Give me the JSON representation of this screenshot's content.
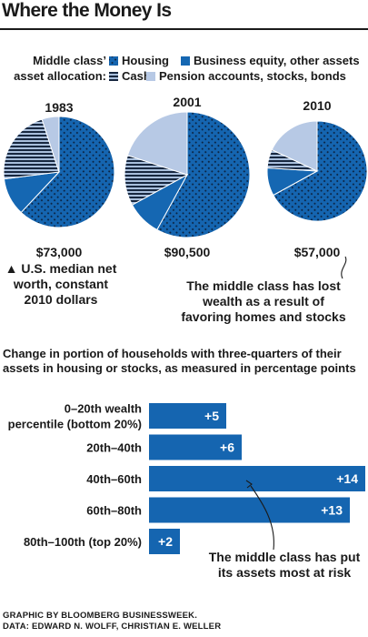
{
  "title": "Where the Money Is",
  "legend": {
    "heading_line1": "Middle class’",
    "heading_line2": "asset allocation:",
    "items": [
      {
        "label": "Housing",
        "icon": "dotted-swatch-icon"
      },
      {
        "label": "Business equity, other assets",
        "icon": "solid-blue-swatch-icon"
      },
      {
        "label": "Cash",
        "icon": "striped-swatch-icon"
      },
      {
        "label": "Pension accounts, stocks, bonds",
        "icon": "light-blue-swatch-icon"
      }
    ]
  },
  "colors": {
    "housing": "#1565b0",
    "housing_dots": "#0b2240",
    "business": "#1567b2",
    "cash_bg": "#a9bfdc",
    "cash_stripe": "#17273f",
    "pension": "#b7c9e5",
    "bar": "#1565b0",
    "bar_text": "#ffffff"
  },
  "pie_notes": {
    "median_line1": "▲ U.S. median net",
    "median_line2": "worth, constant",
    "median_line3": "2010 dollars",
    "lost_line1": "The middle class has lost",
    "lost_line2": "wealth as a result of",
    "lost_line3": "favoring homes and stocks"
  },
  "bar_notes": {
    "risk_line1": "The middle class has put",
    "risk_line2": "its assets most at risk"
  },
  "credit": {
    "line1": "GRAPHIC BY BLOOMBERG BUSINESSWEEK.",
    "line2": "DATA: EDWARD N. WOLFF, CHRISTIAN E. WELLER"
  },
  "chart_data": [
    {
      "type": "pie",
      "title": "",
      "series_order": [
        "Housing",
        "Business equity, other assets",
        "Cash",
        "Pension accounts, stocks, bonds"
      ],
      "pies": [
        {
          "label": "1983",
          "total_label": "$73,000",
          "total": 73000,
          "values": [
            62,
            11,
            22,
            5
          ]
        },
        {
          "label": "2001",
          "total_label": "$90,500",
          "total": 90500,
          "values": [
            58,
            9,
            13,
            20
          ]
        },
        {
          "label": "2010",
          "total_label": "$57,000",
          "total": 57000,
          "values": [
            67,
            9,
            6,
            18
          ]
        }
      ]
    },
    {
      "type": "bar",
      "orientation": "horizontal",
      "title": "Change in portion of households with three-quarters of their assets in housing or stocks, as measured in percentage points",
      "categories": [
        [
          "0–20th wealth",
          "percentile (bottom 20%)"
        ],
        [
          "20th–40th"
        ],
        [
          "40th–60th"
        ],
        [
          "60th–80th"
        ],
        [
          "80th–100th (top 20%)"
        ]
      ],
      "values": [
        5,
        6,
        14,
        13,
        2
      ],
      "value_labels": [
        "+5",
        "+6",
        "+14",
        "+13",
        "+2"
      ],
      "xlim": [
        0,
        14
      ]
    }
  ]
}
